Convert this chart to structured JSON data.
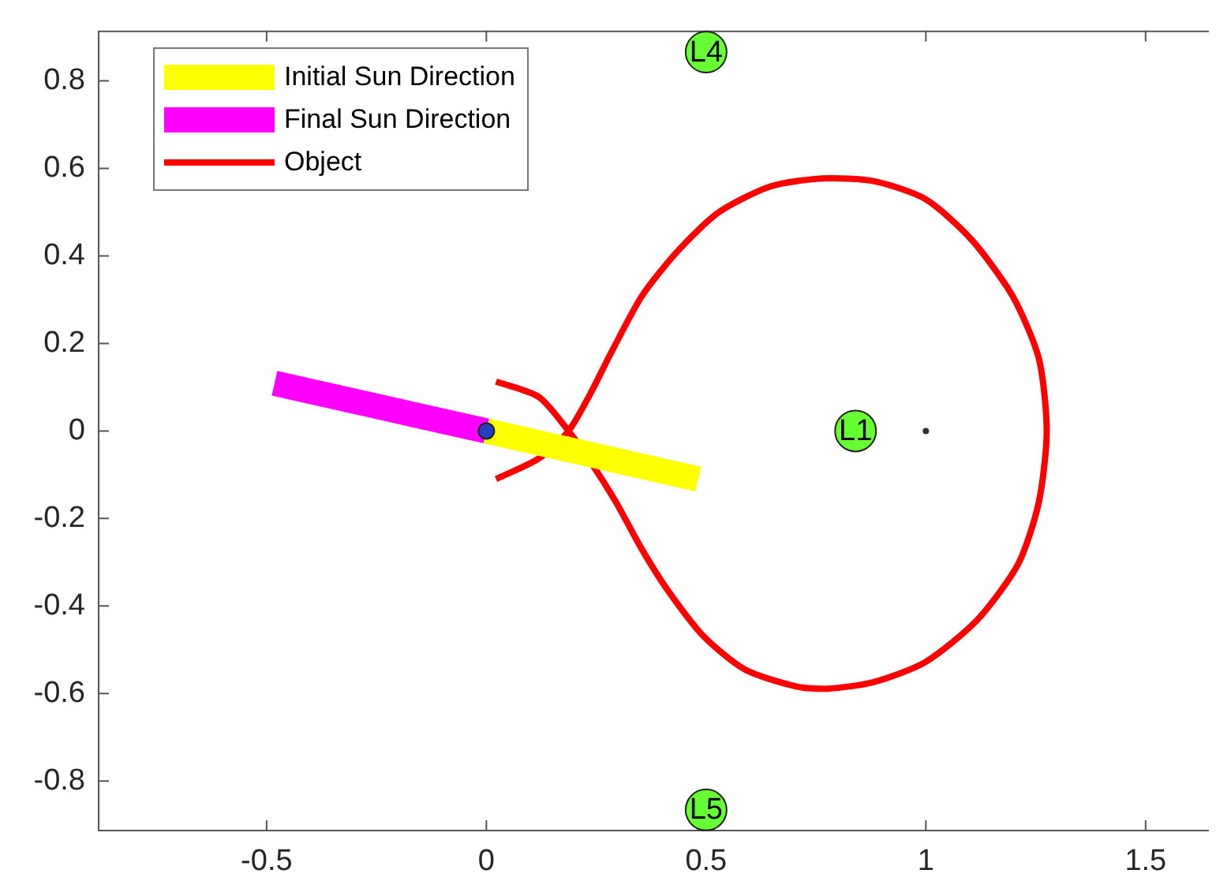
{
  "chart_data": {
    "type": "line",
    "legend": "top left",
    "grid": false,
    "xlim": [
      -0.884,
      1.644
    ],
    "xticks": [
      -0.5,
      0,
      0.5,
      1,
      1.5
    ],
    "ylim": [
      -0.915,
      0.915
    ],
    "yticks": [
      -0.8,
      -0.6,
      -0.4,
      -0.2,
      0,
      0.2,
      0.4,
      0.6,
      0.8
    ],
    "series": [
      {
        "name": "Initial Sun Direction",
        "color": "#ffff00",
        "x": [
          0,
          0.482
        ],
        "values": [
          0,
          -0.11
        ]
      },
      {
        "name": "Final Sun Direction",
        "color": "#ff00ff",
        "x": [
          0,
          -0.482
        ],
        "values": [
          0,
          0.109
        ]
      },
      {
        "name": "Object",
        "color": "#ff0000",
        "x": [
          0.022,
          0.119,
          0.187,
          0.236,
          0.295,
          0.353,
          0.412,
          0.494,
          0.588,
          0.705,
          0.776,
          0.881,
          0.999,
          1.116,
          1.21,
          1.257,
          1.275,
          1.257,
          1.198,
          1.105,
          0.999,
          0.881,
          0.764,
          0.647,
          0.529,
          0.436,
          0.353,
          0.283,
          0.236,
          0.187,
          0.119,
          0.022
        ],
        "values": [
          0.113,
          0.078,
          0,
          -0.069,
          -0.163,
          -0.269,
          -0.363,
          -0.469,
          -0.545,
          -0.584,
          -0.589,
          -0.574,
          -0.528,
          -0.433,
          -0.304,
          -0.163,
          0,
          0.166,
          0.307,
          0.436,
          0.53,
          0.571,
          0.577,
          0.559,
          0.5,
          0.412,
          0.307,
          0.177,
          0.084,
          0,
          -0.063,
          -0.11
        ]
      },
      {
        "type": "scatter",
        "color": "#66ff33",
        "x": [
          0.84,
          0.5,
          0.5
        ],
        "values": [
          0,
          0.866,
          -0.866
        ],
        "value_labels": [
          "L1",
          "L4",
          "L5"
        ]
      },
      {
        "type": "scatter",
        "color": "#2040c0",
        "x": [
          0
        ],
        "values": [
          0
        ]
      },
      {
        "type": "scatter",
        "color": "#333333",
        "x": [
          1
        ],
        "values": [
          0
        ]
      }
    ]
  }
}
